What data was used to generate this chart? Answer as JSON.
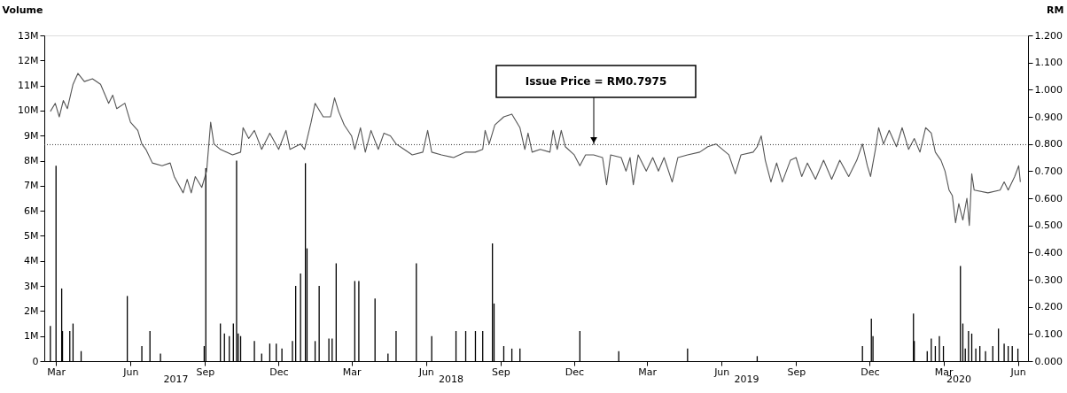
{
  "chart_data": {
    "type": "bar",
    "ylabel": "Volume",
    "y2label": "RM",
    "xlim": [
      "2017-02-20",
      "2020-06-08"
    ],
    "xticks": [
      {
        "value": "2017-03-01",
        "label": "Mar"
      },
      {
        "value": "2017-06-01",
        "label": "Jun"
      },
      {
        "value": "2017-09-01",
        "label": "Sep"
      },
      {
        "value": "2017-12-01",
        "label": "Dec"
      },
      {
        "value": "2018-03-01",
        "label": "Mar"
      },
      {
        "value": "2018-06-01",
        "label": "Jun"
      },
      {
        "value": "2018-09-01",
        "label": "Sep"
      },
      {
        "value": "2018-12-01",
        "label": "Dec"
      },
      {
        "value": "2019-03-01",
        "label": "Mar"
      },
      {
        "value": "2019-06-01",
        "label": "Jun"
      },
      {
        "value": "2019-09-01",
        "label": "Sep"
      },
      {
        "value": "2019-12-01",
        "label": "Dec"
      },
      {
        "value": "2020-03-01",
        "label": "Mar"
      },
      {
        "value": "2020-06-01",
        "label": "Jun"
      }
    ],
    "ylim": [
      0,
      13000000
    ],
    "yticks": [
      {
        "value": 0,
        "label": "0"
      },
      {
        "value": 1000000,
        "label": "1M"
      },
      {
        "value": 2000000,
        "label": "2M"
      },
      {
        "value": 3000000,
        "label": "3M"
      },
      {
        "value": 4000000,
        "label": "4M"
      },
      {
        "value": 5000000,
        "label": "5M"
      },
      {
        "value": 6000000,
        "label": "6M"
      },
      {
        "value": 7000000,
        "label": "7M"
      },
      {
        "value": 8000000,
        "label": "8M"
      },
      {
        "value": 9000000,
        "label": "9M"
      },
      {
        "value": 10000000,
        "label": "10M"
      },
      {
        "value": 11000000,
        "label": "11M"
      },
      {
        "value": 12000000,
        "label": "12M"
      },
      {
        "value": 13000000,
        "label": "13M"
      }
    ],
    "y2lim": [
      0,
      1.2
    ],
    "y2ticks": [
      {
        "value": 0,
        "label": "0.000"
      },
      {
        "value": 0.1,
        "label": "0.100"
      },
      {
        "value": 0.2,
        "label": "0.200"
      },
      {
        "value": 0.3,
        "label": "0.300"
      },
      {
        "value": 0.4,
        "label": "0.400"
      },
      {
        "value": 0.5,
        "label": "0.500"
      },
      {
        "value": 0.6,
        "label": "0.600"
      },
      {
        "value": 0.7,
        "label": "0.700"
      },
      {
        "value": 0.8,
        "label": "0.800"
      },
      {
        "value": 0.9,
        "label": "0.900"
      },
      {
        "value": 1.0,
        "label": "1.000"
      },
      {
        "value": 1.1,
        "label": "1.100"
      },
      {
        "value": 1.2,
        "label": "1.200"
      }
    ],
    "grid": false,
    "legend": false,
    "series": [
      {
        "color": "#000000",
        "x": [
          "2017-02-22",
          "2017-03-01",
          "2017-03-08",
          "2017-03-09",
          "2017-03-18",
          "2017-03-22",
          "2017-04-01",
          "2017-05-28",
          "2017-06-15",
          "2017-06-25",
          "2017-07-08",
          "2017-08-31",
          "2017-09-02",
          "2017-09-20",
          "2017-09-25",
          "2017-10-01",
          "2017-10-06",
          "2017-10-10",
          "2017-10-12",
          "2017-10-15",
          "2017-11-01",
          "2017-11-10",
          "2017-11-20",
          "2017-11-28",
          "2017-12-05",
          "2017-12-18",
          "2017-12-22",
          "2017-12-28",
          "2018-01-03",
          "2018-01-05",
          "2018-01-15",
          "2018-01-20",
          "2018-02-01",
          "2018-02-05",
          "2018-02-10",
          "2018-03-05",
          "2018-03-10",
          "2018-03-30",
          "2018-04-15",
          "2018-04-25",
          "2018-05-20",
          "2018-06-08",
          "2018-07-08",
          "2018-07-20",
          "2018-08-01",
          "2018-08-10",
          "2018-08-22",
          "2018-08-24",
          "2018-09-05",
          "2018-09-15",
          "2018-09-25",
          "2018-12-08",
          "2019-01-25",
          "2019-04-20",
          "2019-07-15",
          "2019-11-22",
          "2019-12-03",
          "2019-12-05",
          "2020-01-24",
          "2020-01-25",
          "2020-02-10",
          "2020-02-15",
          "2020-02-20",
          "2020-02-25",
          "2020-03-01",
          "2020-03-22",
          "2020-03-25",
          "2020-03-28",
          "2020-04-01",
          "2020-04-05",
          "2020-04-10",
          "2020-04-15",
          "2020-04-22",
          "2020-05-01",
          "2020-05-08",
          "2020-05-15",
          "2020-05-20",
          "2020-05-25",
          "2020-06-01"
        ],
        "values": [
          1400000,
          7800000,
          2900000,
          1200000,
          1200000,
          1500000,
          400000,
          2600000,
          600000,
          1200000,
          300000,
          600000,
          7700000,
          1500000,
          1100000,
          1000000,
          1500000,
          8000000,
          1100000,
          1000000,
          800000,
          300000,
          700000,
          700000,
          500000,
          800000,
          3000000,
          3500000,
          7900000,
          4500000,
          800000,
          3000000,
          900000,
          900000,
          3900000,
          3200000,
          3200000,
          2500000,
          300000,
          1200000,
          3900000,
          1000000,
          1200000,
          1200000,
          1200000,
          1200000,
          4700000,
          2300000,
          600000,
          500000,
          500000,
          1200000,
          400000,
          500000,
          200000,
          600000,
          1700000,
          1000000,
          1900000,
          800000,
          400000,
          900000,
          600000,
          1000000,
          600000,
          3800000,
          1500000,
          500000,
          1200000,
          1100000,
          500000,
          600000,
          400000,
          600000,
          1300000,
          700000,
          600000,
          600000,
          500000
        ]
      },
      {
        "type": "line",
        "axis": "y2",
        "color": "#555555",
        "x": [
          "2017-02-22",
          "2017-02-28",
          "2017-03-05",
          "2017-03-10",
          "2017-03-15",
          "2017-03-22",
          "2017-03-28",
          "2017-04-05",
          "2017-04-15",
          "2017-04-25",
          "2017-05-05",
          "2017-05-10",
          "2017-05-15",
          "2017-05-25",
          "2017-06-01",
          "2017-06-10",
          "2017-06-15",
          "2017-06-20",
          "2017-06-28",
          "2017-07-10",
          "2017-07-20",
          "2017-07-25",
          "2017-08-05",
          "2017-08-10",
          "2017-08-15",
          "2017-08-20",
          "2017-08-28",
          "2017-09-03",
          "2017-09-08",
          "2017-09-12",
          "2017-09-20",
          "2017-10-05",
          "2017-10-15",
          "2017-10-18",
          "2017-10-25",
          "2017-11-01",
          "2017-11-10",
          "2017-11-20",
          "2017-12-01",
          "2017-12-10",
          "2017-12-15",
          "2017-12-28",
          "2018-01-02",
          "2018-01-10",
          "2018-01-15",
          "2018-01-25",
          "2018-02-03",
          "2018-02-08",
          "2018-02-13",
          "2018-02-20",
          "2018-03-01",
          "2018-03-05",
          "2018-03-12",
          "2018-03-18",
          "2018-03-25",
          "2018-04-03",
          "2018-04-10",
          "2018-04-18",
          "2018-04-25",
          "2018-05-05",
          "2018-05-15",
          "2018-05-28",
          "2018-06-03",
          "2018-06-08",
          "2018-06-20",
          "2018-07-05",
          "2018-07-20",
          "2018-08-01",
          "2018-08-10",
          "2018-08-13",
          "2018-08-18",
          "2018-08-25",
          "2018-09-05",
          "2018-09-15",
          "2018-09-25",
          "2018-10-01",
          "2018-10-05",
          "2018-10-10",
          "2018-10-20",
          "2018-11-01",
          "2018-11-05",
          "2018-11-10",
          "2018-11-15",
          "2018-11-20",
          "2018-12-01",
          "2018-12-08",
          "2018-12-15",
          "2018-12-25",
          "2019-01-05",
          "2019-01-10",
          "2019-01-15",
          "2019-01-28",
          "2019-02-03",
          "2019-02-08",
          "2019-02-12",
          "2019-02-18",
          "2019-02-28",
          "2019-03-08",
          "2019-03-15",
          "2019-03-22",
          "2019-04-01",
          "2019-04-08",
          "2019-04-20",
          "2019-05-05",
          "2019-05-15",
          "2019-05-25",
          "2019-06-10",
          "2019-06-18",
          "2019-06-25",
          "2019-07-10",
          "2019-07-15",
          "2019-07-20",
          "2019-07-25",
          "2019-08-01",
          "2019-08-08",
          "2019-08-15",
          "2019-08-25",
          "2019-09-01",
          "2019-09-08",
          "2019-09-15",
          "2019-09-25",
          "2019-10-05",
          "2019-10-15",
          "2019-10-25",
          "2019-11-05",
          "2019-11-15",
          "2019-11-22",
          "2019-11-28",
          "2019-12-02",
          "2019-12-08",
          "2019-12-12",
          "2019-12-18",
          "2019-12-25",
          "2020-01-03",
          "2020-01-10",
          "2020-01-18",
          "2020-01-25",
          "2020-02-01",
          "2020-02-08",
          "2020-02-15",
          "2020-02-20",
          "2020-02-27",
          "2020-03-03",
          "2020-03-08",
          "2020-03-12",
          "2020-03-16",
          "2020-03-20",
          "2020-03-25",
          "2020-03-30",
          "2020-04-02",
          "2020-04-05",
          "2020-04-08",
          "2020-04-25",
          "2020-05-10",
          "2020-05-15",
          "2020-05-20",
          "2020-05-28",
          "2020-06-02",
          "2020-06-04"
        ],
        "values": [
          0.92,
          0.95,
          0.9,
          0.96,
          0.93,
          1.02,
          1.06,
          1.03,
          1.04,
          1.02,
          0.95,
          0.98,
          0.93,
          0.95,
          0.88,
          0.85,
          0.8,
          0.78,
          0.73,
          0.72,
          0.73,
          0.68,
          0.62,
          0.67,
          0.62,
          0.68,
          0.64,
          0.7,
          0.88,
          0.8,
          0.78,
          0.76,
          0.77,
          0.86,
          0.82,
          0.85,
          0.78,
          0.84,
          0.78,
          0.85,
          0.78,
          0.8,
          0.78,
          0.88,
          0.95,
          0.9,
          0.9,
          0.97,
          0.92,
          0.87,
          0.83,
          0.78,
          0.86,
          0.77,
          0.85,
          0.78,
          0.84,
          0.83,
          0.8,
          0.78,
          0.76,
          0.77,
          0.85,
          0.77,
          0.76,
          0.75,
          0.77,
          0.77,
          0.78,
          0.85,
          0.8,
          0.87,
          0.9,
          0.91,
          0.86,
          0.78,
          0.84,
          0.77,
          0.78,
          0.77,
          0.85,
          0.78,
          0.85,
          0.79,
          0.76,
          0.72,
          0.76,
          0.76,
          0.75,
          0.65,
          0.76,
          0.75,
          0.7,
          0.75,
          0.65,
          0.76,
          0.7,
          0.75,
          0.7,
          0.75,
          0.66,
          0.75,
          0.76,
          0.77,
          0.79,
          0.8,
          0.76,
          0.69,
          0.76,
          0.77,
          0.79,
          0.83,
          0.74,
          0.66,
          0.73,
          0.66,
          0.74,
          0.75,
          0.68,
          0.73,
          0.67,
          0.74,
          0.67,
          0.74,
          0.68,
          0.74,
          0.8,
          0.72,
          0.68,
          0.78,
          0.86,
          0.8,
          0.85,
          0.79,
          0.86,
          0.78,
          0.82,
          0.77,
          0.86,
          0.84,
          0.77,
          0.74,
          0.7,
          0.63,
          0.61,
          0.51,
          0.58,
          0.52,
          0.6,
          0.5,
          0.69,
          0.63,
          0.62,
          0.63,
          0.66,
          0.63,
          0.68,
          0.72,
          0.66
        ]
      }
    ],
    "ref_lines": [
      {
        "axis": "y2",
        "value": 0.7975,
        "label": "Issue Price = RM0.7975",
        "color": "#333333",
        "line_style": "dotted"
      }
    ],
    "annotations": [
      "2017",
      "2018",
      "2019",
      "2020"
    ]
  }
}
